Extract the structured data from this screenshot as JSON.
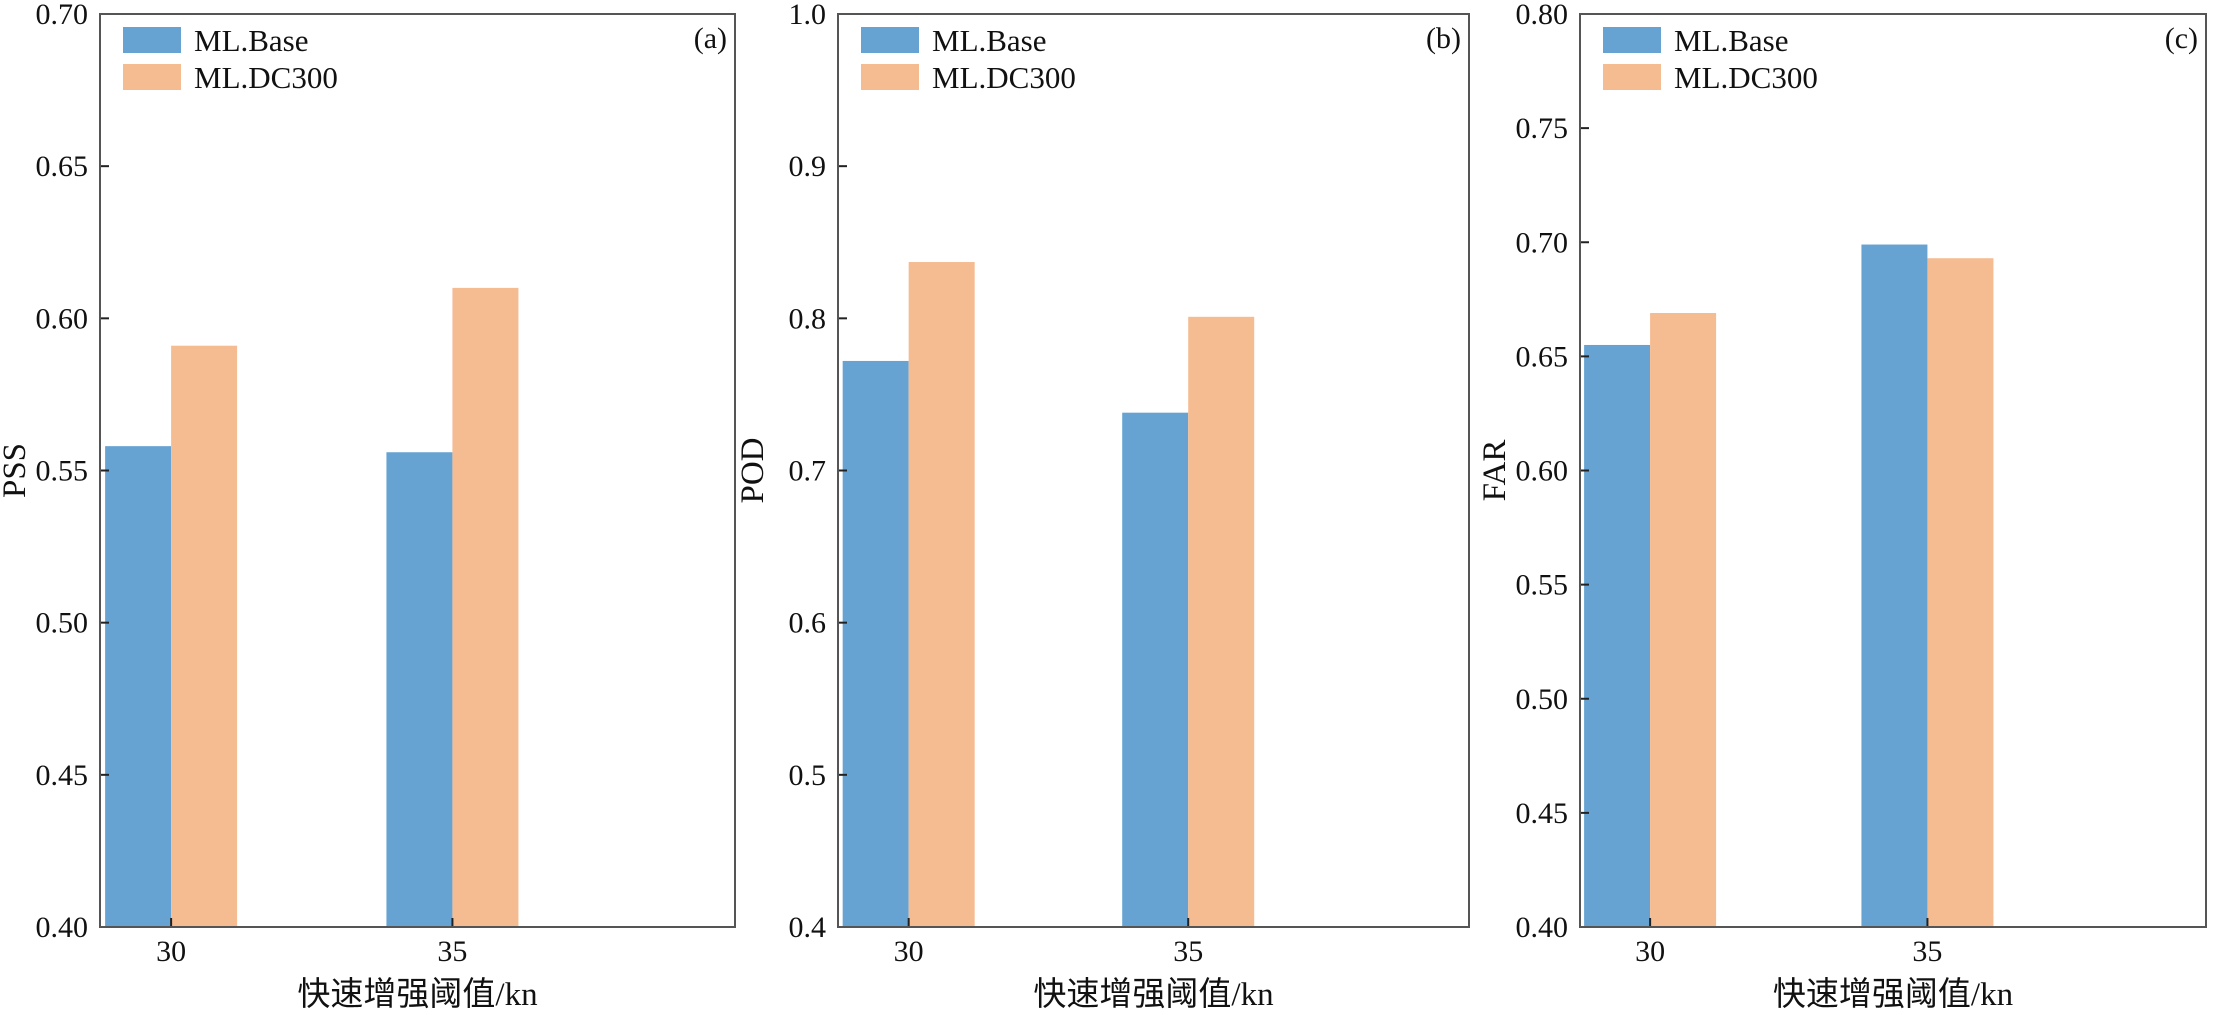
{
  "chart_data": [
    {
      "type": "bar",
      "panel_label": "(a)",
      "categories": [
        "30",
        "35"
      ],
      "xlabel": "快速增强阈值/kn",
      "ylabel": "PSS",
      "ylim": [
        0.4,
        0.7
      ],
      "yticks": [
        "0.40",
        "0.45",
        "0.50",
        "0.55",
        "0.60",
        "0.65",
        "0.70"
      ],
      "series": [
        {
          "name": "ML.Base",
          "color": "#66a3d2",
          "values": [
            0.558,
            0.556
          ]
        },
        {
          "name": "ML.DC300",
          "color": "#f5bb91",
          "values": [
            0.591,
            0.61
          ]
        }
      ],
      "legend": "top-left",
      "grid": false
    },
    {
      "type": "bar",
      "panel_label": "(b)",
      "categories": [
        "30",
        "35"
      ],
      "xlabel": "快速增强阈值/kn",
      "ylabel": "POD",
      "ylim": [
        0.4,
        1.0
      ],
      "yticks": [
        "0.4",
        "0.5",
        "0.6",
        "0.7",
        "0.8",
        "0.9",
        "1.0"
      ],
      "series": [
        {
          "name": "ML.Base",
          "color": "#66a3d2",
          "values": [
            0.772,
            0.738
          ]
        },
        {
          "name": "ML.DC300",
          "color": "#f5bb91",
          "values": [
            0.837,
            0.801
          ]
        }
      ],
      "legend": "top-left",
      "grid": false
    },
    {
      "type": "bar",
      "panel_label": "(c)",
      "categories": [
        "30",
        "35"
      ],
      "xlabel": "快速增强阈值/kn",
      "ylabel": "FAR",
      "ylim": [
        0.4,
        0.8
      ],
      "yticks": [
        "0.40",
        "0.45",
        "0.50",
        "0.55",
        "0.60",
        "0.65",
        "0.70",
        "0.75",
        "0.80"
      ],
      "series": [
        {
          "name": "ML.Base",
          "color": "#66a3d2",
          "values": [
            0.655,
            0.699
          ]
        },
        {
          "name": "ML.DC300",
          "color": "#f5bb91",
          "values": [
            0.669,
            0.693
          ]
        }
      ],
      "legend": "top-left",
      "grid": false
    }
  ]
}
